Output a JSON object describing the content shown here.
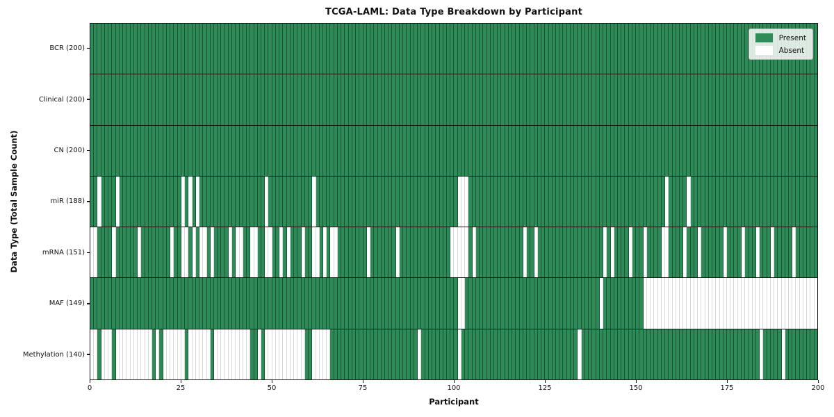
{
  "chart_data": {
    "type": "heatmap",
    "title": "TCGA-LAML: Data Type Breakdown by Participant",
    "xlabel": "Participant",
    "ylabel": "Data Type (Total Sample Count)",
    "x_range": [
      0,
      200
    ],
    "x_ticks": [
      0,
      25,
      50,
      75,
      100,
      125,
      150,
      175,
      200
    ],
    "n_columns": 200,
    "grid": "cell-edges",
    "legend_position": "upper right",
    "colors": {
      "present": "#2e8b57",
      "absent": "#ffffff",
      "edge_on_present": "rgba(0,10,5,0.42)",
      "edge_on_absent": "rgba(0,0,0,0.15)",
      "row_separator": "#161616"
    },
    "legend": [
      {
        "label": "Present",
        "color": "#2e8b57"
      },
      {
        "label": "Absent",
        "color": "#ffffff"
      }
    ],
    "rows": [
      {
        "label": "BCR (200)",
        "present_count": 200,
        "absent": []
      },
      {
        "label": "Clinical (200)",
        "present_count": 200,
        "absent": []
      },
      {
        "label": "CN (200)",
        "present_count": 200,
        "absent": []
      },
      {
        "label": "miR (188)",
        "present_count": 188,
        "absent": [
          2,
          7,
          25,
          27,
          29,
          48,
          61,
          101,
          102,
          103,
          158,
          164
        ]
      },
      {
        "label": "mRNA (151)",
        "present_count": 151,
        "absent": [
          0,
          1,
          6,
          13,
          22,
          25,
          26,
          28,
          30,
          31,
          33,
          38,
          40,
          41,
          44,
          45,
          48,
          49,
          52,
          54,
          58,
          61,
          62,
          64,
          66,
          67,
          76,
          84,
          99,
          100,
          101,
          102,
          103,
          105,
          119,
          122,
          141,
          143,
          148,
          152,
          157,
          158,
          163,
          167,
          174,
          179,
          183,
          187,
          193
        ]
      },
      {
        "label": "MAF (149)",
        "present_count": 149,
        "absent": [
          101,
          102,
          140,
          152,
          153,
          154,
          155,
          156,
          157,
          158,
          159,
          160,
          161,
          162,
          163,
          164,
          165,
          166,
          167,
          168,
          169,
          170,
          171,
          172,
          173,
          174,
          175,
          176,
          177,
          178,
          179,
          180,
          181,
          182,
          183,
          184,
          185,
          186,
          187,
          188,
          189,
          190,
          191,
          192,
          193,
          194,
          195,
          196,
          197,
          198,
          199
        ]
      },
      {
        "label": "Methylation (140)",
        "present_count": 140,
        "absent": [
          0,
          1,
          3,
          4,
          5,
          7,
          8,
          9,
          10,
          11,
          12,
          13,
          14,
          15,
          16,
          18,
          20,
          21,
          22,
          23,
          24,
          25,
          27,
          28,
          29,
          30,
          31,
          32,
          34,
          35,
          36,
          37,
          38,
          39,
          40,
          41,
          42,
          43,
          46,
          48,
          49,
          50,
          51,
          52,
          53,
          54,
          55,
          56,
          57,
          58,
          61,
          62,
          63,
          64,
          65,
          90,
          101,
          134,
          184,
          190
        ]
      }
    ]
  }
}
